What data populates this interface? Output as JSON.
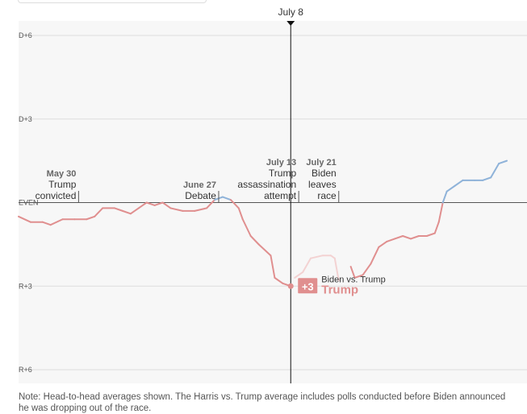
{
  "chart_data": {
    "type": "line",
    "y_axis": {
      "range": [
        -6.5,
        6.5
      ],
      "ticks": [
        {
          "value": 6,
          "label": "D+6"
        },
        {
          "value": 3,
          "label": "D+3"
        },
        {
          "value": 0,
          "label": "EVEN"
        },
        {
          "value": -3,
          "label": "R+3"
        },
        {
          "value": -6,
          "label": "R+6"
        }
      ]
    },
    "x_axis": {
      "range": [
        0,
        123
      ],
      "unit": "days since May 1"
    },
    "cursor": {
      "x": 68,
      "label": "July 8"
    },
    "series": [
      {
        "name": "Biden vs. Trump",
        "color_dem": "#8fb3d9",
        "color_rep": "#e08f8f",
        "points": [
          [
            0,
            -0.5
          ],
          [
            3,
            -0.7
          ],
          [
            6,
            -0.7
          ],
          [
            8,
            -0.8
          ],
          [
            11,
            -0.6
          ],
          [
            14,
            -0.6
          ],
          [
            17,
            -0.6
          ],
          [
            19,
            -0.5
          ],
          [
            21,
            -0.2
          ],
          [
            24,
            -0.2
          ],
          [
            26,
            -0.3
          ],
          [
            28,
            -0.4
          ],
          [
            30,
            -0.2
          ],
          [
            32,
            0.0
          ],
          [
            34,
            -0.1
          ],
          [
            36,
            0.0
          ],
          [
            38,
            -0.2
          ],
          [
            41,
            -0.3
          ],
          [
            44,
            -0.3
          ],
          [
            47,
            -0.2
          ],
          [
            49,
            0.1
          ],
          [
            51,
            0.2
          ],
          [
            53,
            0.1
          ],
          [
            55,
            -0.2
          ],
          [
            56,
            -0.6
          ],
          [
            58,
            -1.2
          ],
          [
            60,
            -1.5
          ],
          [
            63,
            -1.9
          ],
          [
            64,
            -2.7
          ],
          [
            66,
            -2.9
          ],
          [
            68,
            -3.0
          ]
        ]
      },
      {
        "name": "Biden vs. Trump (after July 8)",
        "color": "#f3d2d2",
        "points": [
          [
            69,
            -2.7
          ],
          [
            71,
            -2.5
          ],
          [
            73,
            -2.0
          ],
          [
            76,
            -1.9
          ],
          [
            78,
            -1.9
          ],
          [
            79,
            -2.0
          ],
          [
            80,
            -2.8
          ]
        ]
      },
      {
        "name": "Harris vs. Trump",
        "color_dem": "#8fb3d9",
        "color_rep": "#e08f8f",
        "points": [
          [
            83,
            -2.3
          ],
          [
            84,
            -2.7
          ],
          [
            86,
            -2.6
          ],
          [
            88,
            -2.2
          ],
          [
            90,
            -1.6
          ],
          [
            92,
            -1.4
          ],
          [
            94,
            -1.3
          ],
          [
            96,
            -1.2
          ],
          [
            98,
            -1.3
          ],
          [
            100,
            -1.2
          ],
          [
            102,
            -1.2
          ],
          [
            104,
            -1.1
          ],
          [
            105,
            -0.7
          ],
          [
            106,
            0.0
          ],
          [
            107,
            0.4
          ],
          [
            109,
            0.6
          ],
          [
            111,
            0.8
          ],
          [
            114,
            0.8
          ],
          [
            116,
            0.8
          ],
          [
            118,
            0.9
          ],
          [
            120,
            1.4
          ],
          [
            122,
            1.5
          ]
        ]
      }
    ],
    "annotations": [
      {
        "x": 15,
        "date": "May 30",
        "lines": [
          "Trump",
          "convicted"
        ],
        "level": 1
      },
      {
        "x": 50,
        "date": "June 27",
        "lines": [
          "Debate"
        ],
        "level": 2
      },
      {
        "x": 70,
        "date": "July 13",
        "lines": [
          "Trump",
          "assassination",
          "attempt"
        ],
        "level": 0
      },
      {
        "x": 80,
        "date": "July 21",
        "lines": [
          "Biden",
          "leaves",
          "race"
        ],
        "level": 0
      }
    ],
    "cursor_value": {
      "badge": "+3",
      "series_label": "Biden vs. Trump",
      "winner": "Trump",
      "color": "#e08f8f"
    }
  },
  "note": "Note: Head-to-head averages shown. The Harris vs. Trump average includes polls conducted before Biden announced he was dropping out of the race."
}
